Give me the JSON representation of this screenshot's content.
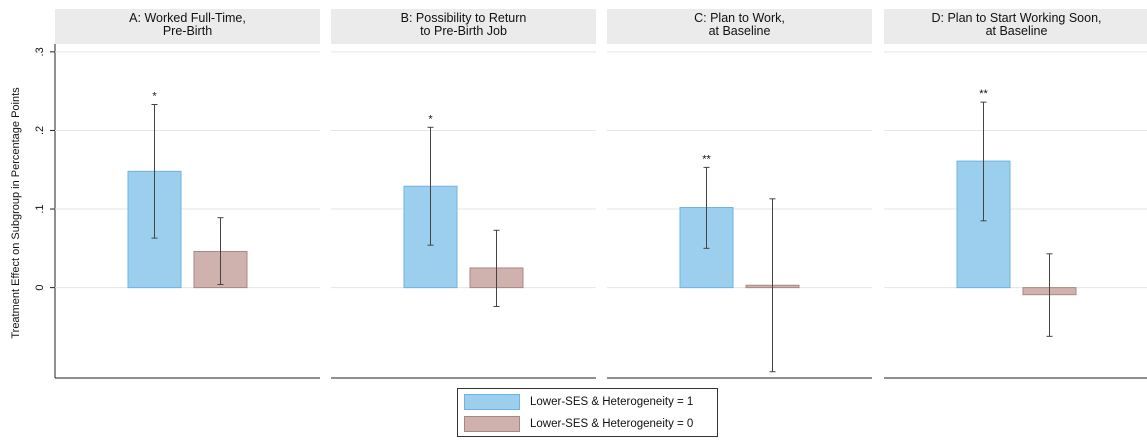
{
  "colors": {
    "series_1": "#9ccfee",
    "series_1_edge": "#6fb3e0",
    "series_0": "#cfb2ad",
    "series_0_edge": "#a98882",
    "panel_header_bg": "#ebebeb",
    "gridline": "#e6e6e6",
    "errorbar": "#444444"
  },
  "ylabel": "Treatment Effect on Subgroup in Percentage Points",
  "legend": [
    {
      "label": "Lower-SES & Heterogeneity = 1",
      "color_key": "series_1"
    },
    {
      "label": "Lower-SES & Heterogeneity = 0",
      "color_key": "series_0"
    }
  ],
  "chart_data": {
    "type": "bar",
    "ylabel": "Treatment Effect on Subgroup in Percentage Points",
    "yticks": [
      {
        "value": 0,
        "label": "0"
      },
      {
        "value": 0.1,
        "label": ".1"
      },
      {
        "value": 0.2,
        "label": ".2"
      },
      {
        "value": 0.3,
        "label": ".3"
      }
    ],
    "ylim": [
      -0.115,
      0.31
    ],
    "grid": true,
    "legend_position": "bottom-center",
    "series_names": [
      "Lower-SES & Heterogeneity = 1",
      "Lower-SES & Heterogeneity = 0"
    ],
    "panels": [
      {
        "title_lines": [
          "A: Worked Full-Time,",
          "Pre-Birth"
        ],
        "bars": [
          {
            "series": "Lower-SES & Heterogeneity = 1",
            "value": 0.148,
            "ci_low": 0.063,
            "ci_high": 0.233,
            "stars": "*"
          },
          {
            "series": "Lower-SES & Heterogeneity = 0",
            "value": 0.046,
            "ci_low": 0.004,
            "ci_high": 0.089,
            "stars": ""
          }
        ]
      },
      {
        "title_lines": [
          "B: Possibility to Return",
          "to Pre-Birth Job"
        ],
        "bars": [
          {
            "series": "Lower-SES & Heterogeneity = 1",
            "value": 0.129,
            "ci_low": 0.054,
            "ci_high": 0.204,
            "stars": "*"
          },
          {
            "series": "Lower-SES & Heterogeneity = 0",
            "value": 0.025,
            "ci_low": -0.024,
            "ci_high": 0.073,
            "stars": ""
          }
        ]
      },
      {
        "title_lines": [
          "C: Plan to Work,",
          "at Baseline"
        ],
        "bars": [
          {
            "series": "Lower-SES & Heterogeneity = 1",
            "value": 0.102,
            "ci_low": 0.05,
            "ci_high": 0.153,
            "stars": "**"
          },
          {
            "series": "Lower-SES & Heterogeneity = 0",
            "value": 0.003,
            "ci_low": -0.107,
            "ci_high": 0.113,
            "stars": ""
          }
        ]
      },
      {
        "title_lines": [
          "D: Plan to Start Working Soon,",
          "at Baseline"
        ],
        "bars": [
          {
            "series": "Lower-SES & Heterogeneity = 1",
            "value": 0.161,
            "ci_low": 0.085,
            "ci_high": 0.236,
            "stars": "**"
          },
          {
            "series": "Lower-SES & Heterogeneity = 0",
            "value": -0.009,
            "ci_low": -0.062,
            "ci_high": 0.043,
            "stars": ""
          }
        ]
      }
    ]
  }
}
